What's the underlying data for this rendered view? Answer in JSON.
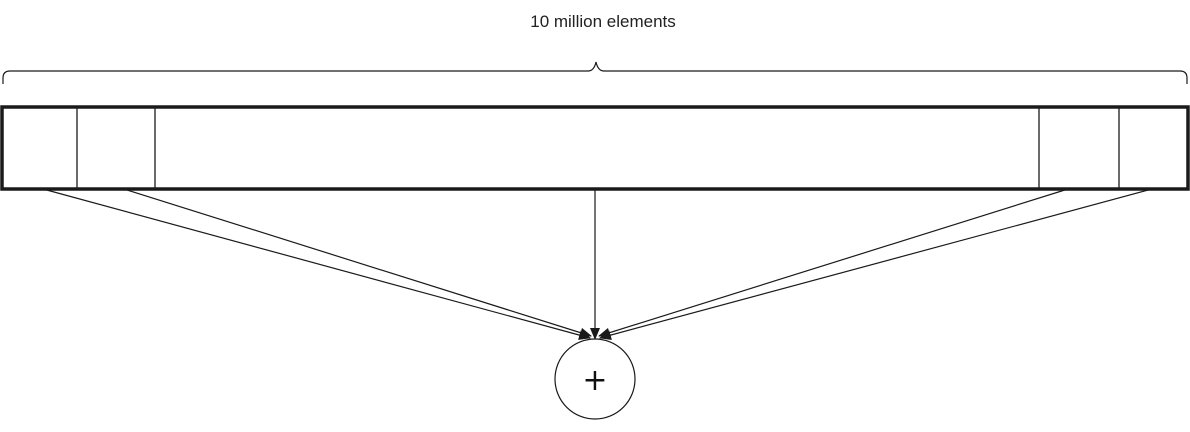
{
  "diagram": {
    "label": "10 million elements",
    "operator_symbol": "+",
    "array_cells": [
      "",
      "",
      "",
      "",
      ""
    ],
    "colors": {
      "stroke": "#1a1a1a",
      "background": "#ffffff"
    }
  }
}
